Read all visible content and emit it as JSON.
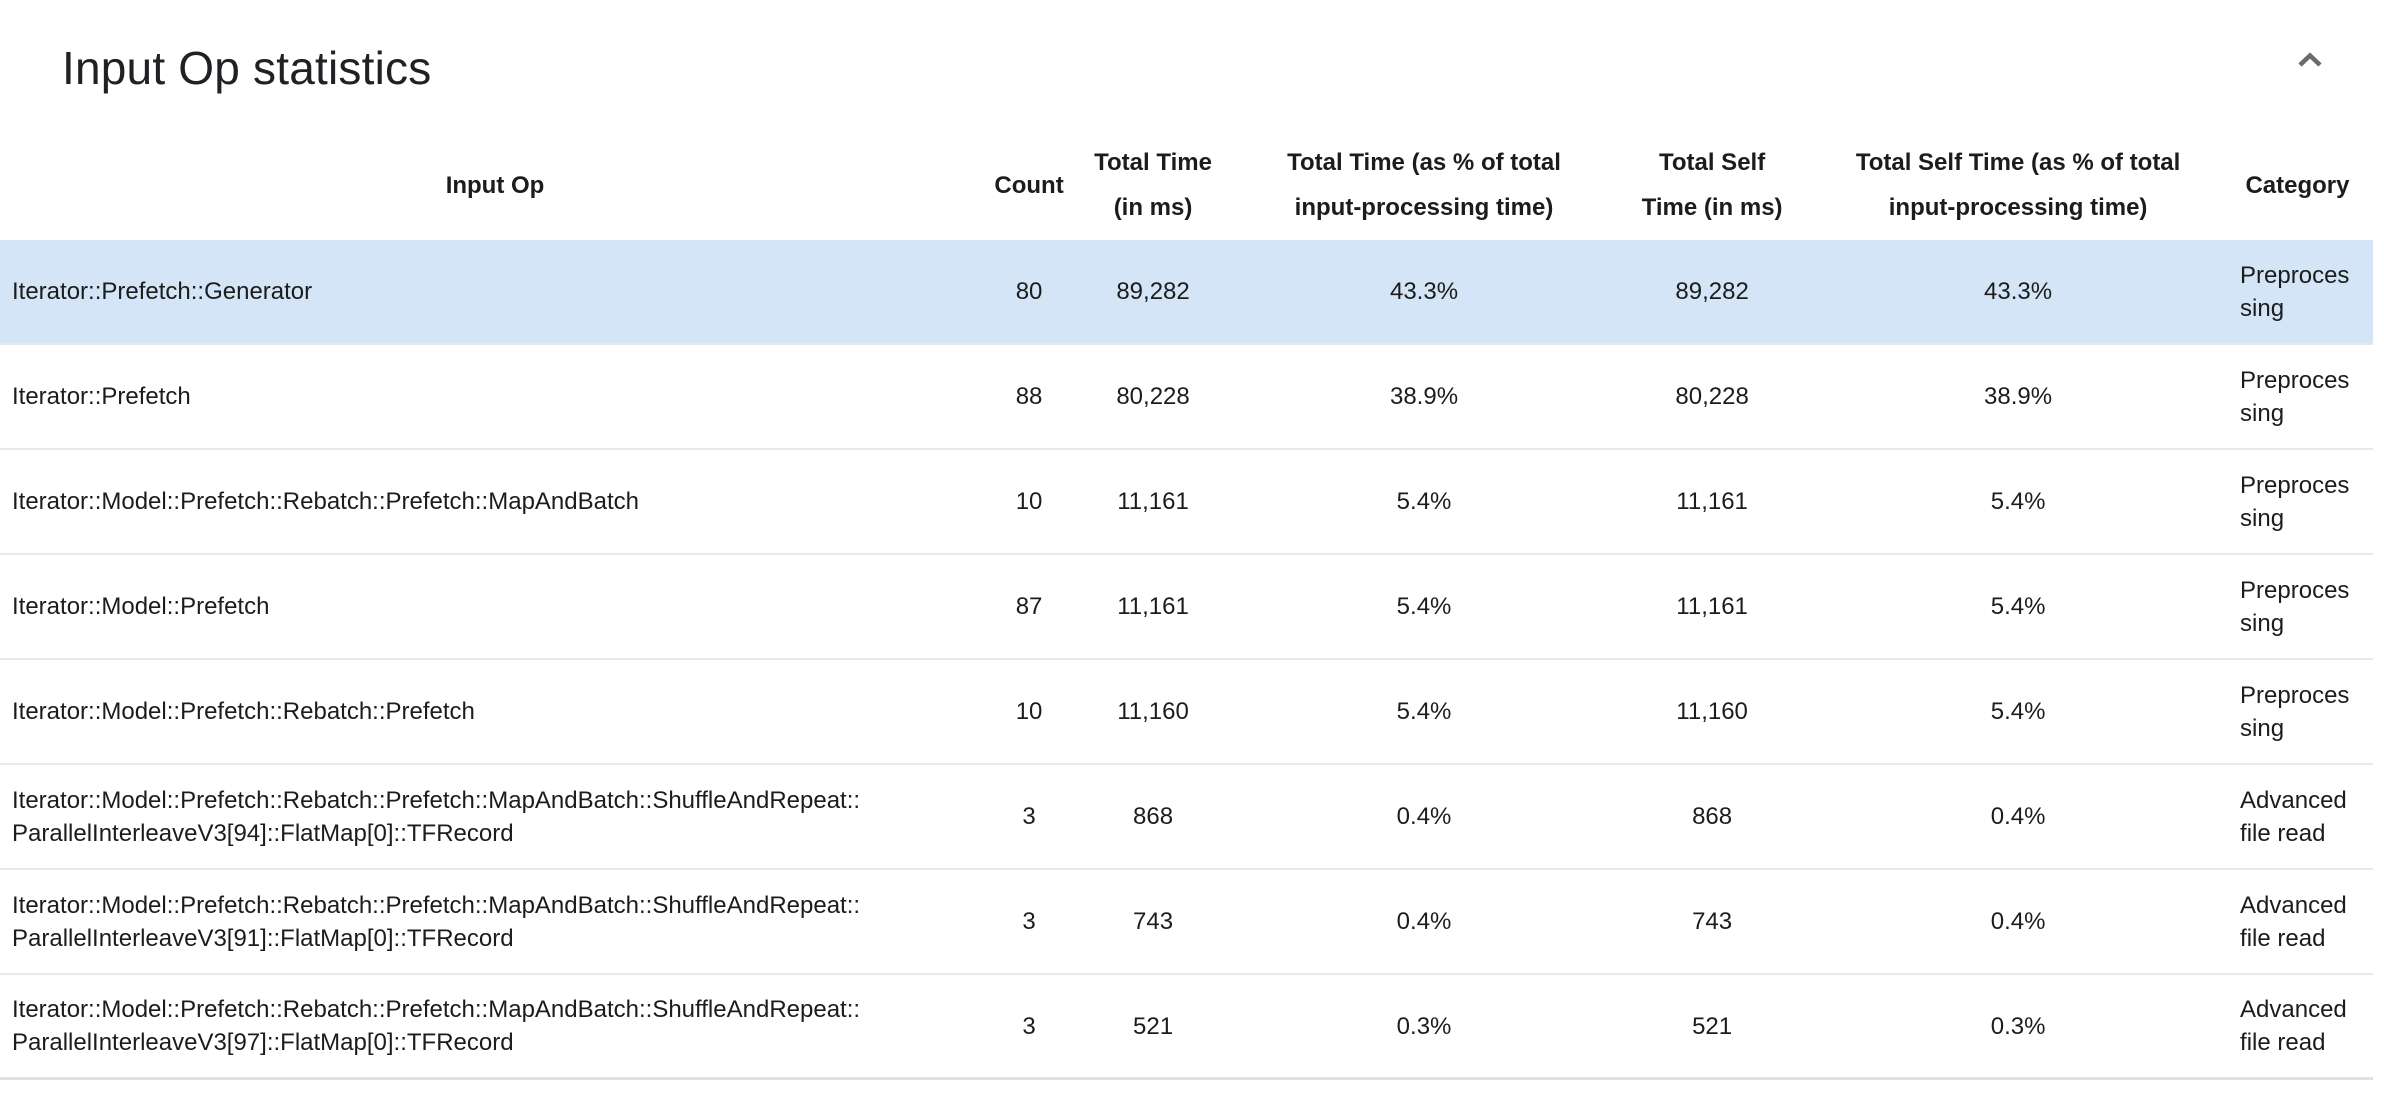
{
  "panel": {
    "title": "Input Op statistics",
    "collapse_icon": "chevron-up"
  },
  "colors": {
    "selected_row_bg": "#d3e5f6",
    "divider": "#e8e8e8",
    "text": "#1c1c1c",
    "icon_gray": "#6b6b6b"
  },
  "table": {
    "headers": {
      "input_op": "Input Op",
      "count": "Count",
      "total_time": "Total Time\n(in ms)",
      "total_time_pct": "Total Time (as % of total\ninput-processing time)",
      "total_self_time": "Total Self\nTime (in ms)",
      "total_self_time_pct": "Total Self Time (as % of total\ninput-processing time)",
      "category": "Category"
    },
    "rows": [
      {
        "input_op": "Iterator::Prefetch::Generator",
        "count": "80",
        "total_time": "89,282",
        "total_time_pct": "43.3%",
        "total_self_time": "89,282",
        "total_self_time_pct": "43.3%",
        "category": "Preprocessing",
        "selected": true
      },
      {
        "input_op": "Iterator::Prefetch",
        "count": "88",
        "total_time": "80,228",
        "total_time_pct": "38.9%",
        "total_self_time": "80,228",
        "total_self_time_pct": "38.9%",
        "category": "Preprocessing",
        "selected": false
      },
      {
        "input_op": "Iterator::Model::Prefetch::Rebatch::Prefetch::MapAndBatch",
        "count": "10",
        "total_time": "11,161",
        "total_time_pct": "5.4%",
        "total_self_time": "11,161",
        "total_self_time_pct": "5.4%",
        "category": "Preprocessing",
        "selected": false
      },
      {
        "input_op": "Iterator::Model::Prefetch",
        "count": "87",
        "total_time": "11,161",
        "total_time_pct": "5.4%",
        "total_self_time": "11,161",
        "total_self_time_pct": "5.4%",
        "category": "Preprocessing",
        "selected": false
      },
      {
        "input_op": "Iterator::Model::Prefetch::Rebatch::Prefetch",
        "count": "10",
        "total_time": "11,160",
        "total_time_pct": "5.4%",
        "total_self_time": "11,160",
        "total_self_time_pct": "5.4%",
        "category": "Preprocessing",
        "selected": false
      },
      {
        "input_op": "Iterator::Model::Prefetch::Rebatch::Prefetch::MapAndBatch::ShuffleAndRepeat::\nParallelInterleaveV3[94]::FlatMap[0]::TFRecord",
        "count": "3",
        "total_time": "868",
        "total_time_pct": "0.4%",
        "total_self_time": "868",
        "total_self_time_pct": "0.4%",
        "category": "Advanced file read",
        "selected": false
      },
      {
        "input_op": "Iterator::Model::Prefetch::Rebatch::Prefetch::MapAndBatch::ShuffleAndRepeat::\nParallelInterleaveV3[91]::FlatMap[0]::TFRecord",
        "count": "3",
        "total_time": "743",
        "total_time_pct": "0.4%",
        "total_self_time": "743",
        "total_self_time_pct": "0.4%",
        "category": "Advanced file read",
        "selected": false
      },
      {
        "input_op": "Iterator::Model::Prefetch::Rebatch::Prefetch::MapAndBatch::ShuffleAndRepeat::\nParallelInterleaveV3[97]::FlatMap[0]::TFRecord",
        "count": "3",
        "total_time": "521",
        "total_time_pct": "0.3%",
        "total_self_time": "521",
        "total_self_time_pct": "0.3%",
        "category": "Advanced file read",
        "selected": false
      }
    ]
  }
}
